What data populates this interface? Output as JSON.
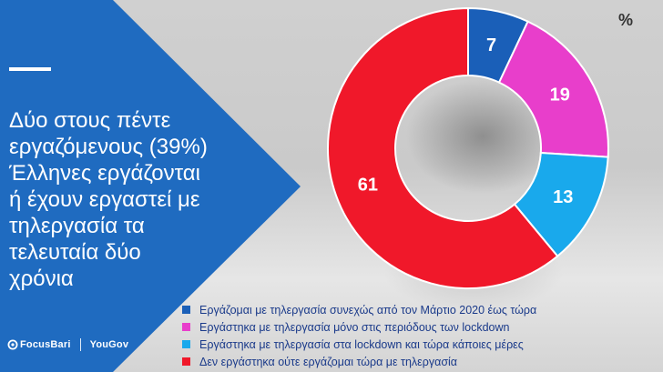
{
  "headline": "Δύο στους πέντε\nεργαζόμενους (39%)\nΈλληνες εργάζονται\nή έχουν εργαστεί με\nτηλεργασία τα\nτελευταία δύο\nχρόνια",
  "unit": "%",
  "brands": {
    "left": "FocusBari",
    "right": "YouGov"
  },
  "colors": {
    "panel": "#1f6bc0",
    "panel_dark": "#155aa8"
  },
  "chart_data": {
    "type": "pie",
    "donut": true,
    "categories": [
      "Εργάζομαι με τηλεργασία συνεχώς από τον Μάρτιο 2020 έως τώρα",
      "Εργάστηκα με τηλεργασία μόνο στις περιόδους των lockdown",
      "Εργάστηκα με τηλεργασία στα lockdown και τώρα κάποιες μέρες",
      "Δεν εργάστηκα ούτε εργάζομαι τώρα με τηλεργασία"
    ],
    "values": [
      7,
      19,
      13,
      61
    ],
    "data_labels": [
      "7",
      "19",
      "13",
      "61"
    ],
    "colors": [
      "#1a5fb8",
      "#e83ecb",
      "#19a9ec",
      "#f0182a"
    ],
    "legend": "bottom"
  }
}
